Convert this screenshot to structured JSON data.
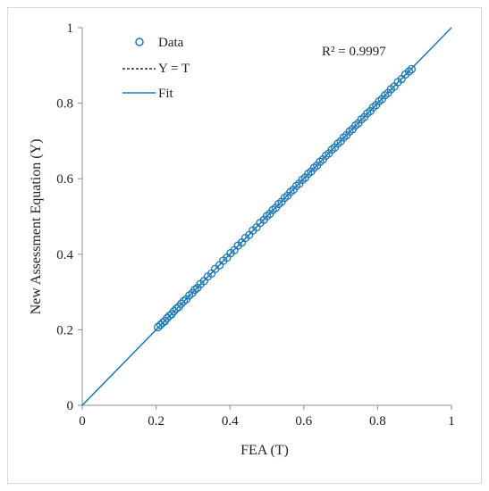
{
  "chart_data": {
    "type": "scatter",
    "xlabel": "FEA (T)",
    "ylabel": "New Assessment Equation (Y)",
    "xlim": [
      0,
      1
    ],
    "ylim": [
      0,
      1
    ],
    "xticks": [
      "0",
      "0.2",
      "0.4",
      "0.6",
      "0.8",
      "1"
    ],
    "yticks": [
      "0",
      "0.2",
      "0.4",
      "0.6",
      "0.8",
      "1"
    ],
    "grid": false,
    "legend_placement": "top-left",
    "annotation": "R² = 0.9997",
    "colors": {
      "data": "#1f78b4",
      "fit": "#1f78b4",
      "reference": "#000000"
    },
    "series": [
      {
        "name": "Data",
        "kind": "scatter",
        "x": [
          0.205,
          0.212,
          0.218,
          0.224,
          0.23,
          0.236,
          0.242,
          0.248,
          0.255,
          0.262,
          0.268,
          0.275,
          0.282,
          0.29,
          0.298,
          0.305,
          0.312,
          0.32,
          0.33,
          0.34,
          0.35,
          0.36,
          0.372,
          0.382,
          0.392,
          0.402,
          0.412,
          0.422,
          0.432,
          0.442,
          0.452,
          0.462,
          0.472,
          0.482,
          0.492,
          0.5,
          0.508,
          0.516,
          0.524,
          0.532,
          0.54,
          0.548,
          0.556,
          0.564,
          0.572,
          0.58,
          0.588,
          0.596,
          0.604,
          0.612,
          0.62,
          0.628,
          0.636,
          0.644,
          0.652,
          0.66,
          0.668,
          0.676,
          0.684,
          0.692,
          0.7,
          0.708,
          0.716,
          0.724,
          0.732,
          0.74,
          0.748,
          0.756,
          0.764,
          0.772,
          0.78,
          0.788,
          0.796,
          0.804,
          0.812,
          0.82,
          0.828,
          0.836,
          0.845,
          0.855,
          0.865,
          0.875,
          0.885,
          0.892
        ],
        "y": [
          0.207,
          0.213,
          0.219,
          0.223,
          0.231,
          0.237,
          0.241,
          0.249,
          0.256,
          0.261,
          0.269,
          0.276,
          0.281,
          0.291,
          0.297,
          0.306,
          0.311,
          0.321,
          0.329,
          0.341,
          0.349,
          0.361,
          0.371,
          0.383,
          0.391,
          0.403,
          0.411,
          0.423,
          0.431,
          0.443,
          0.451,
          0.463,
          0.471,
          0.483,
          0.491,
          0.501,
          0.507,
          0.517,
          0.523,
          0.533,
          0.539,
          0.549,
          0.555,
          0.565,
          0.571,
          0.581,
          0.587,
          0.597,
          0.603,
          0.613,
          0.619,
          0.629,
          0.635,
          0.645,
          0.651,
          0.661,
          0.667,
          0.677,
          0.683,
          0.693,
          0.699,
          0.709,
          0.715,
          0.725,
          0.731,
          0.741,
          0.747,
          0.757,
          0.763,
          0.773,
          0.779,
          0.789,
          0.795,
          0.805,
          0.811,
          0.821,
          0.827,
          0.837,
          0.844,
          0.856,
          0.864,
          0.876,
          0.884,
          0.89
        ]
      },
      {
        "name": "Y = T",
        "kind": "line",
        "style": "dashed",
        "x": [
          0,
          1
        ],
        "y": [
          0,
          1
        ]
      },
      {
        "name": "Fit",
        "kind": "line",
        "style": "solid",
        "x": [
          0,
          1
        ],
        "y": [
          0,
          1
        ]
      }
    ]
  }
}
